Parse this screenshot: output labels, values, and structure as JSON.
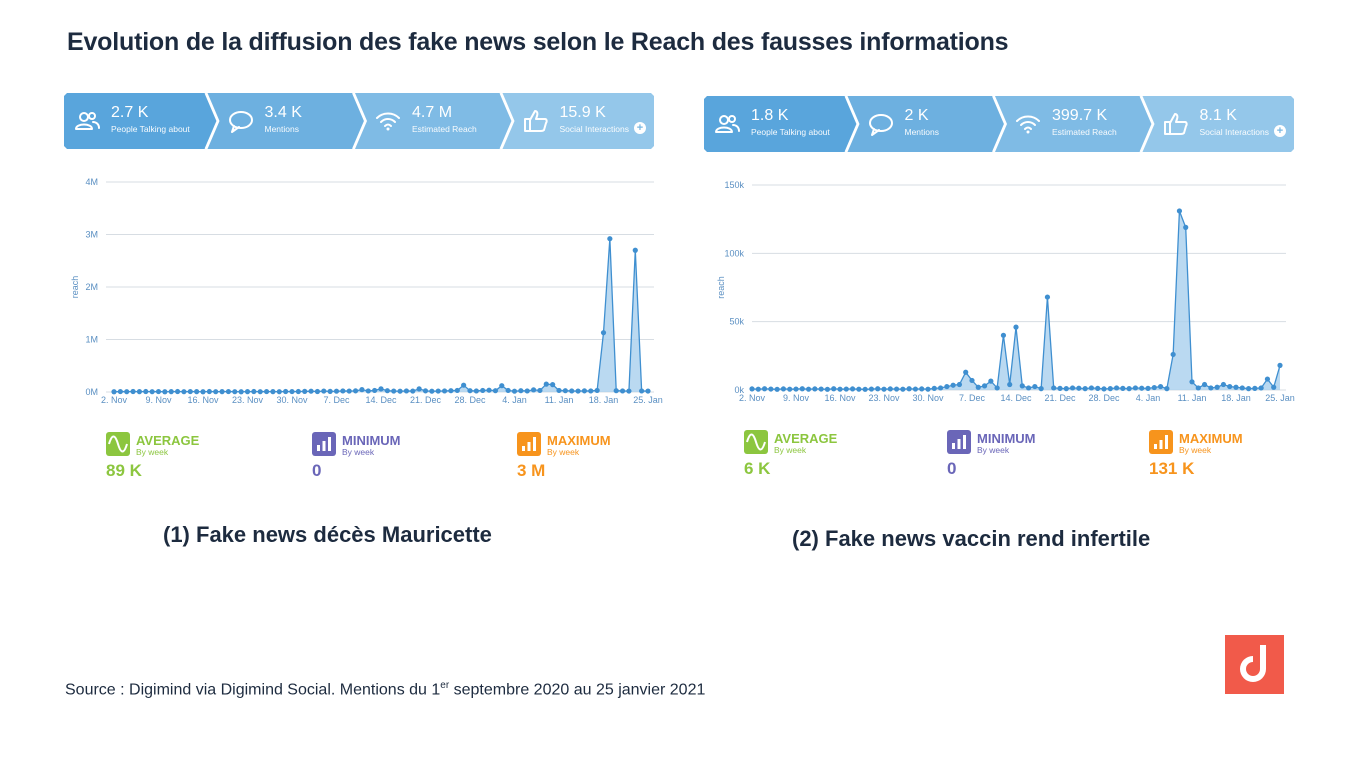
{
  "title": "Evolution de la diffusion des fake news selon le Reach des fausses informations",
  "source": {
    "prefix": "Source : Digimind via Digimind Social. Mentions du 1",
    "sup": "er",
    "suffix": " septembre 2020 au 25 janvier 2021"
  },
  "colors": {
    "kpi": [
      "#59a5dc",
      "#6db0e0",
      "#7fbbe5",
      "#94c7ea"
    ],
    "line": "#3f8fd0",
    "fill": "#a9cfee",
    "average": "#8cc63f",
    "minimum": "#6a66b8",
    "maximum": "#f7941d",
    "logo": "#f15a4a"
  },
  "charts": [
    {
      "caption": "(1) Fake news décès Mauricette",
      "kpis": [
        {
          "value": "2.7 K",
          "label": "People Talking about",
          "icon": "people-icon"
        },
        {
          "value": "3.4 K",
          "label": "Mentions",
          "icon": "speech-bubble-icon"
        },
        {
          "value": "4.7 M",
          "label": "Estimated Reach",
          "icon": "wifi-icon"
        },
        {
          "value": "15.9 K",
          "label": "Social Interactions",
          "icon": "thumbs-up-icon"
        }
      ],
      "stats": [
        {
          "title": "AVERAGE",
          "sub": "By week",
          "value": "89 K",
          "icon": "wave-icon"
        },
        {
          "title": "MINIMUM",
          "sub": "By week",
          "value": "0",
          "icon": "bars-icon"
        },
        {
          "title": "MAXIMUM",
          "sub": "By week",
          "value": "3 M",
          "icon": "bars-up-icon"
        }
      ]
    },
    {
      "caption": "(2) Fake news vaccin rend infertile",
      "kpis": [
        {
          "value": "1.8 K",
          "label": "People Talking about",
          "icon": "people-icon"
        },
        {
          "value": "2 K",
          "label": "Mentions",
          "icon": "speech-bubble-icon"
        },
        {
          "value": "399.7 K",
          "label": "Estimated Reach",
          "icon": "wifi-icon"
        },
        {
          "value": "8.1 K",
          "label": "Social Interactions",
          "icon": "thumbs-up-icon"
        }
      ],
      "stats": [
        {
          "title": "AVERAGE",
          "sub": "By week",
          "value": "6 K",
          "icon": "wave-icon"
        },
        {
          "title": "MINIMUM",
          "sub": "By week",
          "value": "0",
          "icon": "bars-icon"
        },
        {
          "title": "MAXIMUM",
          "sub": "By week",
          "value": "131 K",
          "icon": "bars-up-icon"
        }
      ]
    }
  ],
  "chart_data": [
    {
      "type": "area",
      "ylabel": "reach",
      "yticks": [
        "0M",
        "1M",
        "2M",
        "3M",
        "4M"
      ],
      "ylim": [
        0,
        4000000
      ],
      "xlim": [
        0,
        84
      ],
      "xticks": [
        {
          "label": "2. Nov",
          "x": 0
        },
        {
          "label": "9. Nov",
          "x": 7
        },
        {
          "label": "16. Nov",
          "x": 14
        },
        {
          "label": "23. Nov",
          "x": 21
        },
        {
          "label": "30. Nov",
          "x": 28
        },
        {
          "label": "7. Dec",
          "x": 35
        },
        {
          "label": "14. Dec",
          "x": 42
        },
        {
          "label": "21. Dec",
          "x": 49
        },
        {
          "label": "28. Dec",
          "x": 56
        },
        {
          "label": "4. Jan",
          "x": 63
        },
        {
          "label": "11. Jan",
          "x": 70
        },
        {
          "label": "18. Jan",
          "x": 77
        },
        {
          "label": "25. Jan",
          "x": 84
        }
      ],
      "grid": true,
      "values": [
        5000,
        8000,
        6000,
        10000,
        7000,
        9000,
        6000,
        8000,
        5000,
        7000,
        9000,
        6000,
        8000,
        7000,
        5000,
        9000,
        6000,
        7000,
        8000,
        6000,
        5000,
        7000,
        9000,
        6000,
        8000,
        7000,
        6000,
        10000,
        8000,
        9000,
        12000,
        15000,
        10000,
        18000,
        12000,
        15000,
        20000,
        18000,
        22000,
        45000,
        20000,
        30000,
        60000,
        25000,
        18000,
        15000,
        20000,
        18000,
        60000,
        22000,
        15000,
        18000,
        20000,
        25000,
        30000,
        130000,
        25000,
        20000,
        30000,
        35000,
        25000,
        120000,
        30000,
        15000,
        25000,
        20000,
        40000,
        30000,
        150000,
        140000,
        30000,
        25000,
        20000,
        18000,
        22000,
        20000,
        30000,
        1130000,
        2920000,
        25000,
        20000,
        18000,
        2700000,
        20000,
        18000
      ]
    },
    {
      "type": "area",
      "ylabel": "reach",
      "yticks": [
        "0k",
        "50k",
        "100k",
        "150k"
      ],
      "ylim": [
        0,
        150000
      ],
      "xlim": [
        0,
        84
      ],
      "xticks": [
        {
          "label": "2. Nov",
          "x": 0
        },
        {
          "label": "9. Nov",
          "x": 7
        },
        {
          "label": "16. Nov",
          "x": 14
        },
        {
          "label": "23. Nov",
          "x": 21
        },
        {
          "label": "30. Nov",
          "x": 28
        },
        {
          "label": "7. Dec",
          "x": 35
        },
        {
          "label": "14. Dec",
          "x": 42
        },
        {
          "label": "21. Dec",
          "x": 49
        },
        {
          "label": "28. Dec",
          "x": 56
        },
        {
          "label": "4. Jan",
          "x": 63
        },
        {
          "label": "11. Jan",
          "x": 70
        },
        {
          "label": "18. Jan",
          "x": 77
        },
        {
          "label": "25. Jan",
          "x": 84
        }
      ],
      "grid": true,
      "values": [
        800,
        600,
        900,
        700,
        500,
        800,
        600,
        700,
        900,
        600,
        800,
        700,
        500,
        900,
        600,
        700,
        800,
        600,
        500,
        700,
        900,
        600,
        800,
        700,
        600,
        900,
        700,
        800,
        600,
        1200,
        1500,
        2500,
        3500,
        4000,
        13000,
        7000,
        2000,
        3000,
        6500,
        1500,
        40000,
        4000,
        46000,
        3000,
        1500,
        2500,
        1000,
        68000,
        1500,
        1200,
        1000,
        1500,
        1300,
        1000,
        1500,
        1200,
        800,
        1000,
        1500,
        1200,
        1000,
        1500,
        1300,
        1200,
        1800,
        2500,
        1000,
        26000,
        131000,
        119000,
        6000,
        1500,
        4000,
        1500,
        2000,
        4000,
        2500,
        2000,
        1500,
        1000,
        1200,
        1500,
        8000,
        2000,
        18000
      ]
    }
  ]
}
